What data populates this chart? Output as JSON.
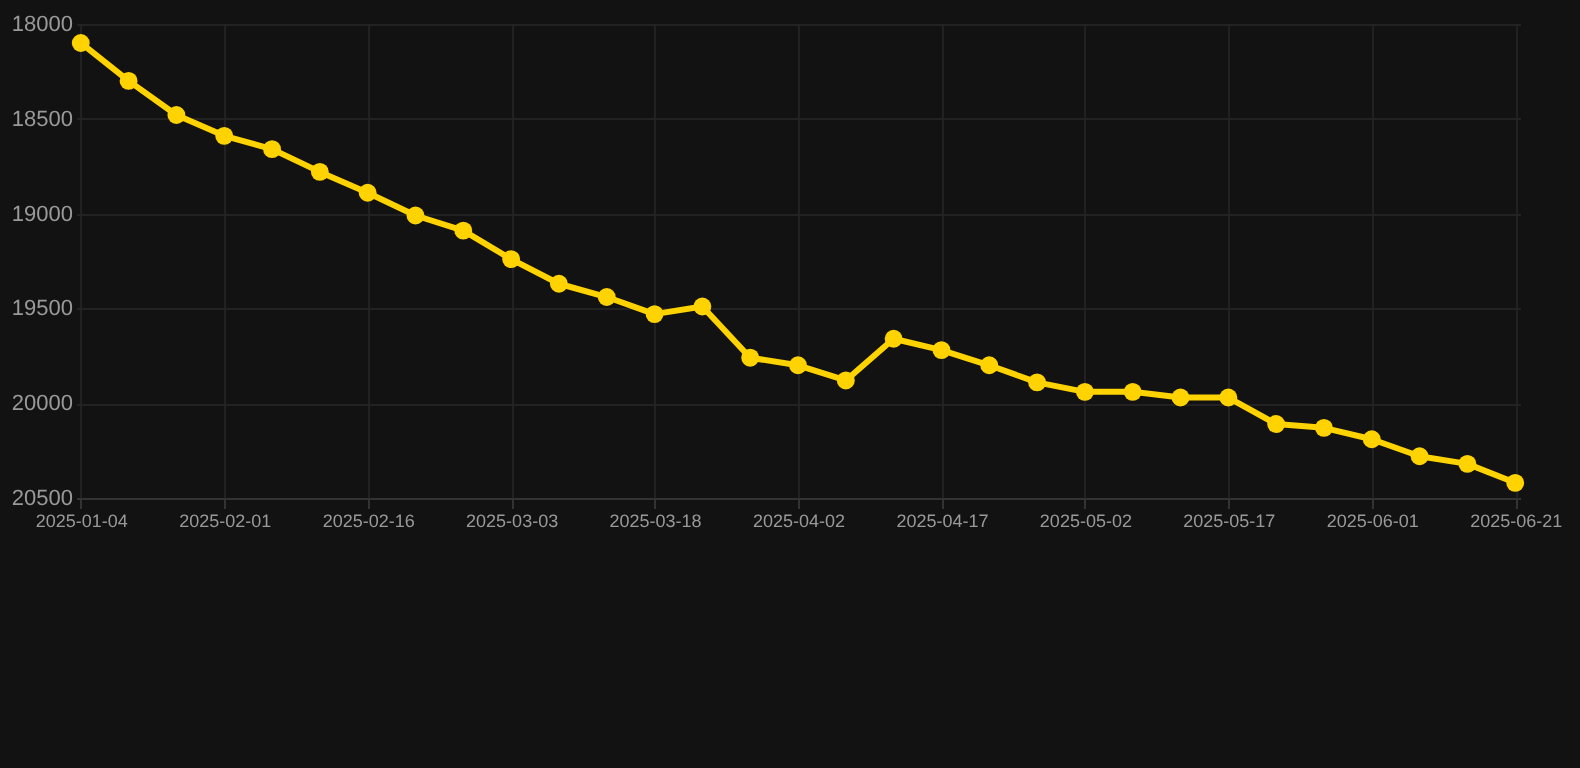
{
  "chart_data": {
    "type": "line",
    "categories": [
      "2025-01-04",
      null,
      null,
      "2025-02-01",
      null,
      null,
      "2025-02-16",
      null,
      null,
      "2025-03-03",
      null,
      null,
      "2025-03-18",
      null,
      null,
      "2025-04-02",
      null,
      null,
      "2025-04-17",
      null,
      null,
      "2025-05-02",
      null,
      null,
      "2025-05-17",
      null,
      null,
      "2025-06-01",
      null,
      null,
      "2025-06-21"
    ],
    "series": [
      {
        "color": "#ffd300",
        "values": [
          18100,
          18300,
          18480,
          18590,
          18660,
          18780,
          18890,
          19010,
          19090,
          19240,
          19370,
          19440,
          19530,
          19490,
          19760,
          19800,
          19880,
          19660,
          19720,
          19800,
          19890,
          19940,
          19940,
          19970,
          19970,
          20110,
          20130,
          20190,
          20280,
          20320,
          20420
        ]
      }
    ],
    "ylim": [
      20500,
      18000
    ],
    "yticks": [
      18000,
      18500,
      19000,
      19500,
      20000,
      20500
    ],
    "grid": true,
    "marker": "circle",
    "line_style": "solid"
  }
}
